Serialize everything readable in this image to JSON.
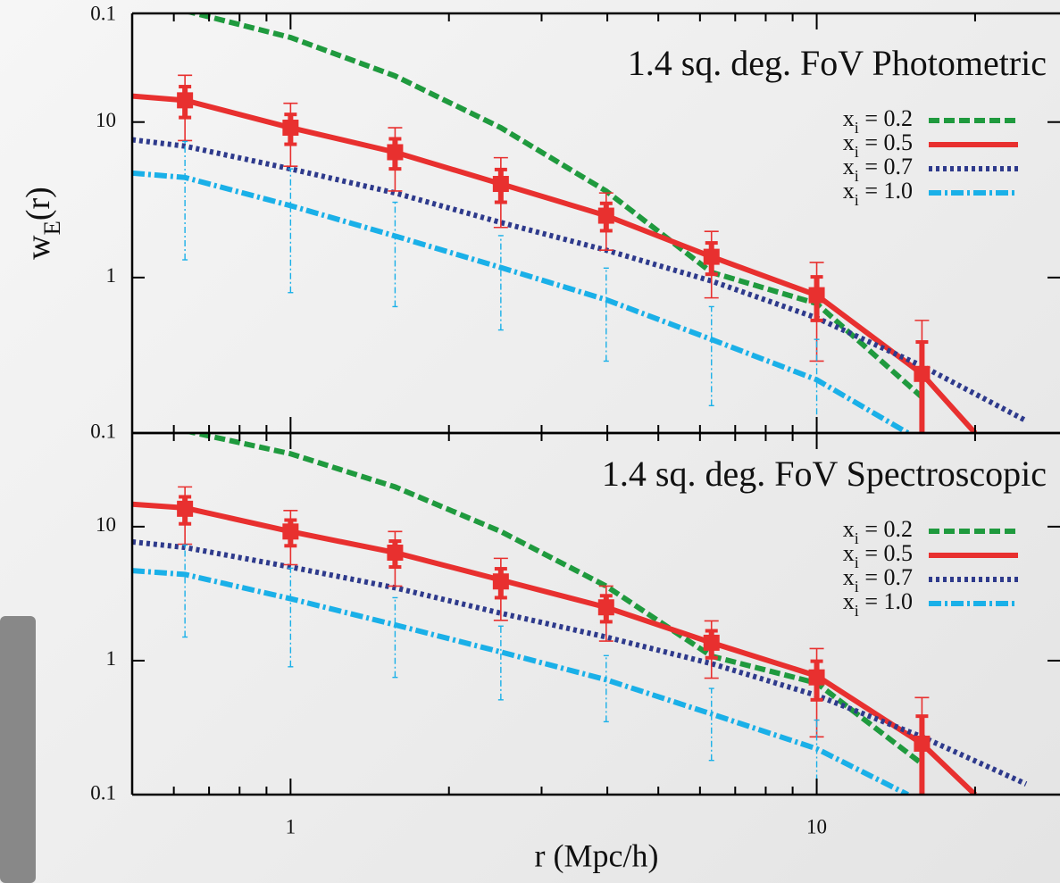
{
  "chart_data": [
    {
      "type": "line",
      "title": "1.4 sq. deg. FoV Photometric",
      "cropped_label": "0.1",
      "xlim": [
        0.5,
        29
      ],
      "ylim": [
        0.1,
        50
      ],
      "log_x": true,
      "log_y": true,
      "yticks": [
        0.1,
        1,
        10
      ],
      "xticks": [
        1,
        10
      ],
      "xminor": [
        0.6,
        0.7,
        0.8,
        0.9,
        2,
        3,
        4,
        5,
        6,
        7,
        8,
        9,
        20
      ],
      "ylabel": {
        "base": "w",
        "sub": "E",
        "rest": "(r)"
      },
      "series": [
        {
          "name": {
            "base": "x",
            "sub": "i",
            "rest": " = 0.2"
          },
          "color": "#1f9a3e",
          "dash": "12,5",
          "x": [
            0.63,
            1,
            1.58,
            2.51,
            3.98,
            6.31,
            10,
            15.85
          ],
          "values": [
            52,
            35,
            19.8,
            9.2,
            3.6,
            1.08,
            0.68,
            0.17
          ]
        },
        {
          "name": {
            "base": "x",
            "sub": "i",
            "rest": " = 0.5"
          },
          "color": "#e8302f",
          "dash": "",
          "x": [
            0.5,
            0.63,
            1,
            1.58,
            2.51,
            3.98,
            6.31,
            10,
            15.85,
            20
          ],
          "values": [
            14.7,
            13.8,
            9.2,
            6.4,
            4.0,
            2.5,
            1.36,
            0.77,
            0.24,
            0.1
          ]
        },
        {
          "name": {
            "base": "x",
            "sub": "i",
            "rest": " = 0.7"
          },
          "color": "#2e3a8c",
          "dash": "4,4",
          "x": [
            0.5,
            0.63,
            1,
            1.58,
            2.51,
            3.98,
            6.31,
            10,
            15.85,
            25
          ],
          "values": [
            7.7,
            7.0,
            5.0,
            3.5,
            2.26,
            1.5,
            0.95,
            0.55,
            0.27,
            0.12
          ]
        },
        {
          "name": {
            "base": "x",
            "sub": "i",
            "rest": " = 1.0"
          },
          "color": "#1ab0e8",
          "dash": "14,4,3,4",
          "x": [
            0.5,
            0.63,
            1,
            1.58,
            2.51,
            3.98,
            6.31,
            10,
            14.9
          ],
          "values": [
            4.7,
            4.4,
            2.9,
            1.85,
            1.16,
            0.72,
            0.4,
            0.22,
            0.1
          ]
        }
      ],
      "points": [
        {
          "color": "#e8302f",
          "style": "solid",
          "x": [
            0.63,
            1,
            1.58,
            2.51,
            3.98,
            6.31,
            10,
            15.85
          ],
          "values": [
            13.8,
            9.2,
            6.4,
            4.0,
            2.5,
            1.36,
            0.77,
            0.24
          ],
          "errors": [
            6.2,
            4,
            2.8,
            1.9,
            1.0,
            0.62,
            0.48,
            0.29
          ]
        },
        {
          "color": "#1ab0e8",
          "style": "dashed",
          "x": [
            0.63,
            1,
            1.58,
            2.51,
            3.98,
            6.31,
            10
          ],
          "values": [
            4.4,
            2.9,
            1.85,
            1.16,
            0.72,
            0.4,
            0.22
          ],
          "errors": [
            3.1,
            2.1,
            1.2,
            0.7,
            0.43,
            0.25,
            0.18
          ]
        }
      ]
    },
    {
      "type": "line",
      "title": "1.4 sq. deg. FoV Spectroscopic",
      "xlabel": "r (Mpc/h)",
      "xlim": [
        0.5,
        29
      ],
      "ylim": [
        0.1,
        50
      ],
      "log_x": true,
      "log_y": true,
      "yticks": [
        0.1,
        1,
        10
      ],
      "xticks": [
        1,
        10
      ],
      "xminor": [
        0.6,
        0.7,
        0.8,
        0.9,
        2,
        3,
        4,
        5,
        6,
        7,
        8,
        9,
        20
      ],
      "series": [
        {
          "name": {
            "base": "x",
            "sub": "i",
            "rest": " = 0.2"
          },
          "color": "#1f9a3e",
          "dash": "12,5",
          "x": [
            0.63,
            1,
            1.58,
            2.51,
            3.98,
            6.31,
            10,
            15.85
          ],
          "values": [
            52,
            35,
            19.8,
            9.2,
            3.6,
            1.08,
            0.68,
            0.17
          ]
        },
        {
          "name": {
            "base": "x",
            "sub": "i",
            "rest": " = 0.5"
          },
          "color": "#e8302f",
          "dash": "",
          "x": [
            0.5,
            0.63,
            1,
            1.58,
            2.51,
            3.98,
            6.31,
            10,
            15.85,
            20
          ],
          "values": [
            14.7,
            13.8,
            9.2,
            6.4,
            4.0,
            2.5,
            1.36,
            0.77,
            0.24,
            0.1
          ]
        },
        {
          "name": {
            "base": "x",
            "sub": "i",
            "rest": " = 0.7"
          },
          "color": "#2e3a8c",
          "dash": "4,4",
          "x": [
            0.5,
            0.63,
            1,
            1.58,
            2.51,
            3.98,
            6.31,
            10,
            15.85,
            25
          ],
          "values": [
            7.7,
            7.0,
            5.0,
            3.5,
            2.26,
            1.5,
            0.95,
            0.55,
            0.27,
            0.12
          ]
        },
        {
          "name": {
            "base": "x",
            "sub": "i",
            "rest": " = 1.0"
          },
          "color": "#1ab0e8",
          "dash": "14,4,3,4",
          "x": [
            0.5,
            0.63,
            1,
            1.58,
            2.51,
            3.98,
            6.31,
            10,
            14.9
          ],
          "values": [
            4.7,
            4.4,
            2.9,
            1.85,
            1.16,
            0.72,
            0.4,
            0.22,
            0.1
          ]
        }
      ],
      "points": [
        {
          "color": "#e8302f",
          "style": "solid",
          "x": [
            0.63,
            1,
            1.58,
            2.51,
            3.98,
            6.31,
            10,
            15.85
          ],
          "values": [
            13.6,
            9.2,
            6.4,
            3.9,
            2.5,
            1.36,
            0.75,
            0.24
          ],
          "errors": [
            6.2,
            4,
            2.8,
            1.9,
            1.1,
            0.62,
            0.48,
            0.29
          ]
        },
        {
          "color": "#1ab0e8",
          "style": "dashed",
          "x": [
            0.63,
            1,
            1.58,
            2.51,
            3.98,
            6.31,
            10
          ],
          "values": [
            4.4,
            2.9,
            1.85,
            1.16,
            0.72,
            0.4,
            0.22
          ],
          "errors": [
            2.9,
            2.0,
            1.1,
            0.65,
            0.37,
            0.22,
            0.14
          ]
        }
      ]
    }
  ]
}
